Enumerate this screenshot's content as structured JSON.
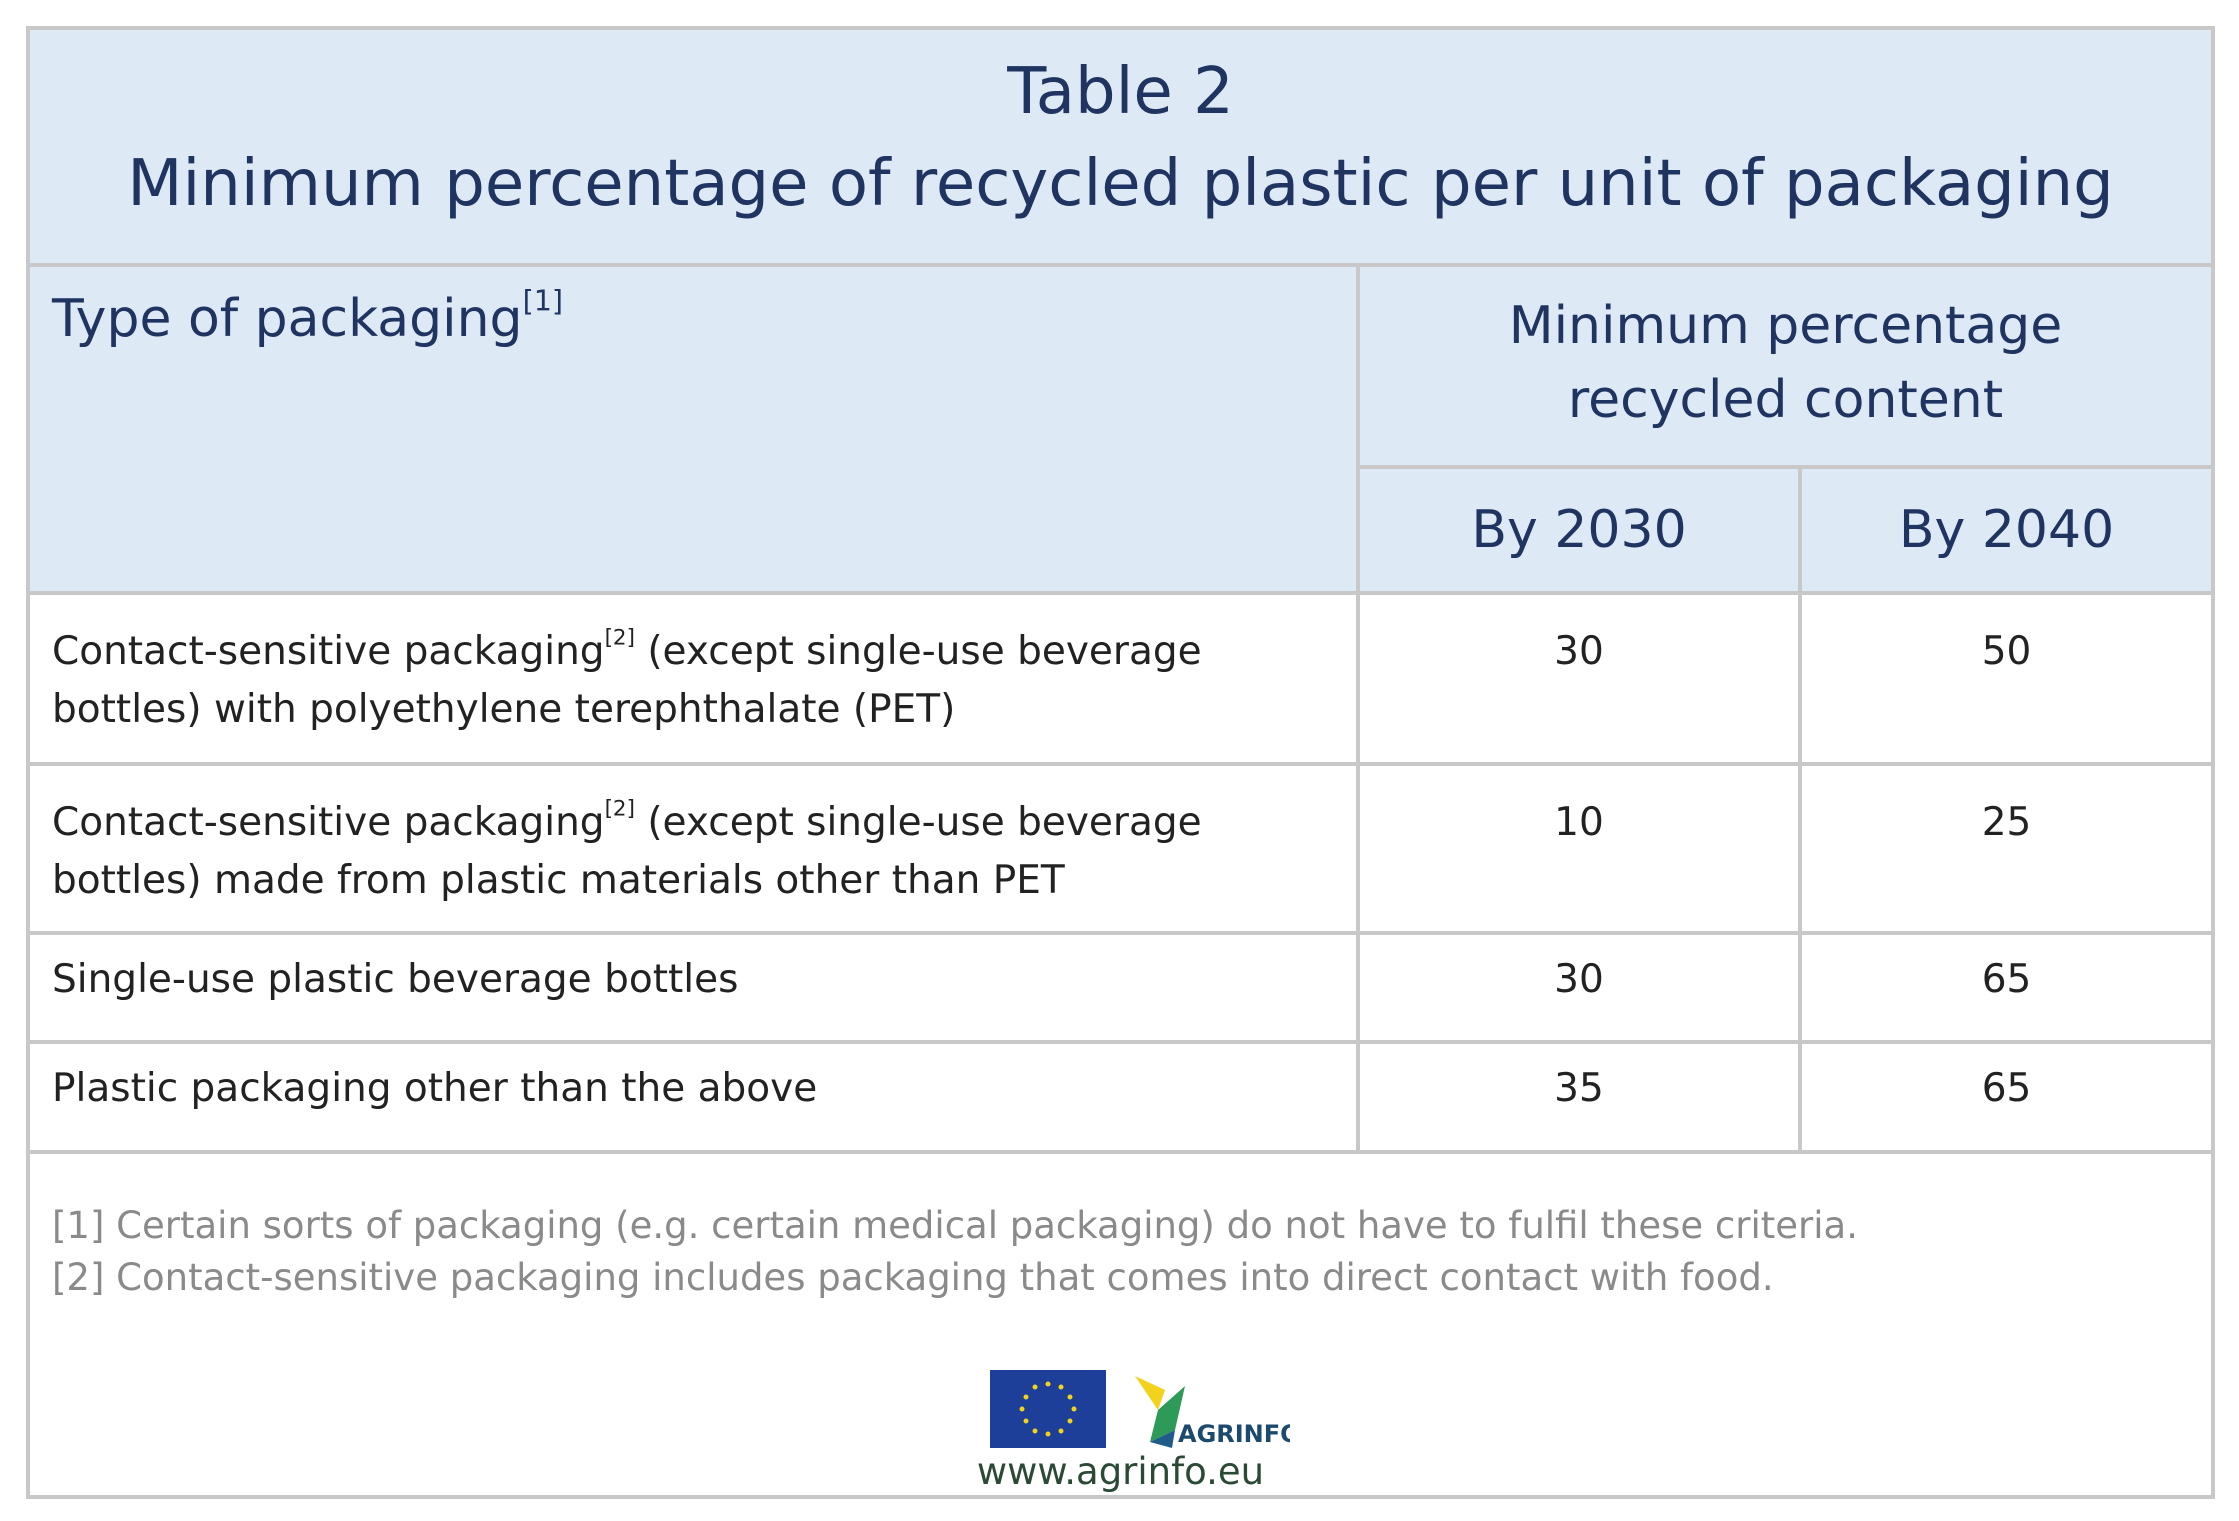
{
  "title": [
    "Table 2",
    "Minimum percentage of recycled plastic per unit of packaging"
  ],
  "table": {
    "header": {
      "type": "Type of packaging",
      "type_note": "[1]",
      "group": "Minimum percentage recycled content",
      "columns": [
        "By 2030",
        "By 2040"
      ]
    },
    "rows": [
      {
        "label": "Contact-sensitive packaging",
        "note": "[2]",
        "label_rest": "(except single-use beverage bottles) with polyethylene terephthalate (PET)",
        "values": [
          30,
          50
        ]
      },
      {
        "label": "Contact-sensitive packaging",
        "note": "[2]",
        "label_rest": "(except single-use beverage bottles) made from plastic materials other than PET",
        "values": [
          10,
          25
        ]
      },
      {
        "label": "Single-use plastic beverage bottles",
        "values": [
          30,
          65
        ]
      },
      {
        "label": "Plastic packaging other than the above",
        "values": [
          35,
          65
        ]
      }
    ]
  },
  "footnotes": [
    "[1] Certain sorts of packaging (e.g. certain medical packaging) do not have to fulfil these criteria.",
    "[2] Contact-sensitive packaging includes packaging that comes into direct contact with food."
  ],
  "footer": {
    "logo": "AGRINFO",
    "url": "www.agrinfo.eu"
  }
}
